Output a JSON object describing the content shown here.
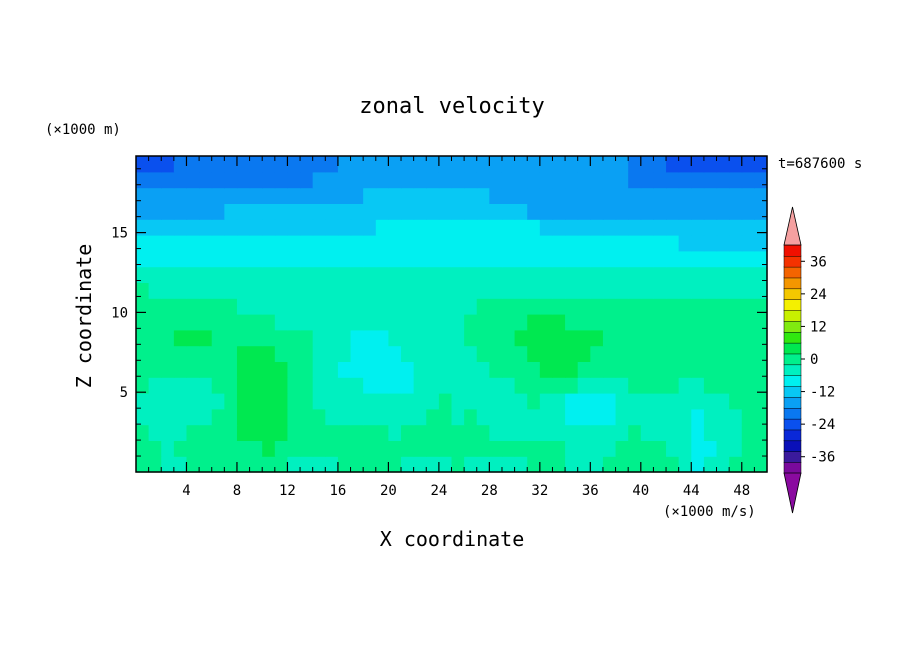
{
  "chart_data": {
    "type": "heatmap",
    "title": "zonal velocity",
    "xlabel": "X coordinate",
    "ylabel": "Z coordinate",
    "x_unit_label": "(×1000 m/s)",
    "y_unit_label": "(×1000 m)",
    "time_label": "t=687600 s",
    "xlim": [
      0,
      50
    ],
    "ylim": [
      0,
      19.8
    ],
    "x_ticks": [
      4,
      8,
      12,
      16,
      20,
      24,
      28,
      32,
      36,
      40,
      44,
      48
    ],
    "x_tick_labels": [
      "4",
      "8",
      "12",
      "16",
      "20",
      "24",
      "28",
      "32",
      "36",
      "40",
      "44",
      "48"
    ],
    "y_ticks": [
      5,
      10,
      15
    ],
    "y_tick_labels": [
      "5",
      "10",
      "15"
    ],
    "grid": false,
    "colorbar": {
      "placement": "right",
      "min": -42,
      "max": 42,
      "step": 4,
      "labels": [
        "36",
        "24",
        "12",
        "0",
        "-12",
        "-24",
        "-36"
      ],
      "label_values": [
        36,
        24,
        12,
        0,
        -12,
        -24,
        -36
      ],
      "colors": [
        "#7a0a9c",
        "#3a1a9c",
        "#0a10b8",
        "#0a28d8",
        "#0a50ee",
        "#0a78f0",
        "#0aa0f4",
        "#08c8f4",
        "#00f0f0",
        "#00f0c0",
        "#00f08c",
        "#00e850",
        "#30e810",
        "#80ea10",
        "#c8f000",
        "#f4f000",
        "#f4c800",
        "#f49600",
        "#f46400",
        "#f43200",
        "#f01000",
        "#f5a0a0"
      ],
      "under_color": "#8a0aa0",
      "over_color": "#f5a0a0"
    },
    "field": {
      "nx": 50,
      "nz": 20,
      "values": [
        [
          -2,
          -2,
          -3,
          -3,
          -2,
          -2,
          -2,
          -1,
          -1,
          -1,
          -2,
          -2,
          -3,
          -3,
          -3,
          -3,
          -2,
          -2,
          -2,
          -2,
          -2,
          -3,
          -3,
          -3,
          -3,
          -2,
          -3,
          -3,
          -3,
          -3,
          -3,
          -2,
          -2,
          -2,
          -3,
          -3,
          -3,
          -2,
          -2,
          -2,
          -1,
          -1,
          -2,
          -3,
          -7,
          -6,
          -3,
          -2,
          -2,
          -2
        ],
        [
          -2,
          -2,
          -3,
          -2,
          -2,
          -2,
          -2,
          -1,
          0,
          1,
          2,
          1,
          0,
          -1,
          -2,
          -1,
          0,
          0,
          -1,
          -1,
          -2,
          -2,
          -1,
          -1,
          -2,
          -2,
          -2,
          -2,
          -2,
          -2,
          -2,
          -2,
          -2,
          -2,
          -3,
          -4,
          -4,
          -3,
          -2,
          -1,
          -1,
          -2,
          -3,
          -5,
          -8,
          -7,
          -4,
          -3,
          -2,
          -2
        ],
        [
          -2,
          -3,
          -3,
          -3,
          -2,
          -2,
          -1,
          1,
          2,
          3,
          3,
          2,
          1,
          -1,
          -2,
          -2,
          -1,
          -1,
          -2,
          -2,
          -3,
          -2,
          -1,
          -1,
          -2,
          -2,
          -2,
          -2,
          -3,
          -3,
          -3,
          -3,
          -3,
          -4,
          -5,
          -5,
          -5,
          -4,
          -3,
          -2,
          -3,
          -4,
          -5,
          -6,
          -8,
          -6,
          -4,
          -3,
          -2,
          -2
        ],
        [
          -3,
          -4,
          -4,
          -4,
          -3,
          -3,
          -2,
          1,
          3,
          4,
          4,
          2,
          1,
          -1,
          -2,
          -3,
          -3,
          -3,
          -4,
          -4,
          -5,
          -4,
          -3,
          -2,
          -2,
          -3,
          -2,
          -3,
          -4,
          -4,
          -4,
          -3,
          -4,
          -6,
          -8,
          -9,
          -9,
          -7,
          -5,
          -3,
          -3,
          -4,
          -5,
          -6,
          -7,
          -5,
          -4,
          -3,
          -2,
          -2
        ],
        [
          -3,
          -5,
          -5,
          -5,
          -5,
          -4,
          -3,
          1,
          3,
          5,
          4,
          2,
          1,
          -1,
          -3,
          -4,
          -4,
          -4,
          -5,
          -5,
          -5,
          -5,
          -4,
          -3,
          -2,
          -3,
          -3,
          -4,
          -4,
          -3,
          -3,
          -2,
          -3,
          -5,
          -8,
          -9,
          -8,
          -7,
          -6,
          -4,
          -3,
          -4,
          -4,
          -4,
          -4,
          -3,
          -3,
          -2,
          -1,
          -1
        ],
        [
          -2,
          -4,
          -5,
          -4,
          -4,
          -3,
          -2,
          1,
          2,
          3,
          3,
          2,
          1,
          -1,
          -3,
          -5,
          -6,
          -6,
          -7,
          -7,
          -7,
          -7,
          -5,
          -4,
          -3,
          -3,
          -3,
          -4,
          -4,
          -4,
          -2,
          -1,
          -1,
          -1,
          -2,
          -4,
          -3,
          -3,
          -3,
          -2,
          -1,
          -2,
          -2,
          -3,
          -3,
          -2,
          -2,
          -1,
          -1,
          -1
        ],
        [
          -1,
          -2,
          -2,
          -2,
          -2,
          -2,
          -1,
          1,
          2,
          3,
          3,
          2,
          1,
          -1,
          -3,
          -5,
          -7,
          -8,
          -9,
          -9,
          -8,
          -7,
          -6,
          -4,
          -3,
          -3,
          -3,
          -3,
          -2,
          -1,
          0,
          1,
          2,
          2,
          2,
          1,
          0,
          0,
          -1,
          -1,
          0,
          0,
          -1,
          -1,
          -1,
          0,
          -1,
          -1,
          -1,
          -1
        ],
        [
          0,
          -1,
          -1,
          -1,
          -1,
          0,
          0,
          1,
          2,
          2,
          2,
          1,
          0,
          -1,
          -3,
          -5,
          -6,
          -7,
          -8,
          -8,
          -8,
          -6,
          -6,
          -5,
          -4,
          -4,
          -3,
          -2,
          -1,
          0,
          1,
          2,
          3,
          3,
          2,
          2,
          1,
          1,
          0,
          0,
          0,
          0,
          -1,
          -1,
          0,
          0,
          0,
          0,
          0,
          0
        ],
        [
          1,
          1,
          1,
          2,
          2,
          2,
          1,
          1,
          1,
          1,
          1,
          0,
          -1,
          -2,
          -4,
          -5,
          -6,
          -7,
          -7,
          -7,
          -6,
          -6,
          -5,
          -5,
          -4,
          -3,
          -2,
          -1,
          0,
          1,
          2,
          2,
          2,
          2,
          2,
          2,
          2,
          1,
          1,
          1,
          1,
          1,
          1,
          1,
          1,
          1,
          1,
          1,
          1,
          1
        ],
        [
          1,
          1,
          1,
          1,
          0,
          0,
          0,
          -1,
          -1,
          -2,
          -2,
          -3,
          -3,
          -4,
          -4,
          -5,
          -5,
          -6,
          -6,
          -6,
          -5,
          -5,
          -4,
          -4,
          -3,
          -3,
          -2,
          -1,
          0,
          0,
          1,
          2,
          2,
          2,
          1,
          1,
          1,
          1,
          0,
          0,
          0,
          0,
          0,
          0,
          0,
          0,
          0,
          1,
          1,
          1
        ],
        [
          0,
          0,
          -1,
          -1,
          -1,
          -2,
          -2,
          -2,
          -3,
          -3,
          -3,
          -3,
          -4,
          -4,
          -4,
          -4,
          -5,
          -5,
          -5,
          -5,
          -5,
          -4,
          -4,
          -4,
          -4,
          -3,
          -3,
          -2,
          -2,
          -1,
          -1,
          -1,
          -1,
          -1,
          -1,
          -1,
          -1,
          -1,
          -1,
          -1,
          -1,
          -1,
          -1,
          -1,
          -1,
          -1,
          -1,
          -1,
          -1,
          -1
        ],
        [
          -2,
          -3,
          -3,
          -3,
          -4,
          -4,
          -4,
          -4,
          -4,
          -4,
          -4,
          -4,
          -4,
          -4,
          -5,
          -5,
          -5,
          -5,
          -5,
          -5,
          -4,
          -4,
          -4,
          -4,
          -4,
          -4,
          -4,
          -4,
          -4,
          -3,
          -3,
          -3,
          -3,
          -3,
          -3,
          -3,
          -3,
          -3,
          -3,
          -3,
          -3,
          -3,
          -3,
          -3,
          -3,
          -3,
          -3,
          -3,
          -3,
          -3
        ],
        [
          -5,
          -5,
          -5,
          -6,
          -6,
          -6,
          -6,
          -6,
          -6,
          -6,
          -5,
          -5,
          -5,
          -5,
          -5,
          -5,
          -6,
          -6,
          -6,
          -6,
          -6,
          -6,
          -6,
          -6,
          -5,
          -5,
          -5,
          -5,
          -6,
          -6,
          -6,
          -6,
          -6,
          -6,
          -6,
          -6,
          -6,
          -6,
          -6,
          -6,
          -6,
          -6,
          -6,
          -6,
          -6,
          -6,
          -6,
          -6,
          -6,
          -6
        ],
        [
          -8,
          -8,
          -8,
          -8,
          -8,
          -8,
          -7,
          -7,
          -7,
          -7,
          -7,
          -7,
          -7,
          -7,
          -7,
          -7,
          -7,
          -7,
          -7,
          -7,
          -7,
          -7,
          -7,
          -8,
          -8,
          -8,
          -8,
          -8,
          -8,
          -8,
          -8,
          -8,
          -8,
          -8,
          -8,
          -8,
          -8,
          -8,
          -8,
          -8,
          -8,
          -8,
          -8,
          -9,
          -9,
          -9,
          -9,
          -9,
          -9,
          -9
        ],
        [
          -10,
          -10,
          -10,
          -10,
          -10,
          -9,
          -9,
          -9,
          -9,
          -9,
          -9,
          -9,
          -9,
          -9,
          -9,
          -9,
          -9,
          -9,
          -9,
          -9,
          -9,
          -9,
          -9,
          -9,
          -9,
          -9,
          -9,
          -9,
          -9,
          -9,
          -9,
          -9,
          -9,
          -9,
          -9,
          -10,
          -10,
          -10,
          -10,
          -10,
          -10,
          -10,
          -10,
          -11,
          -11,
          -11,
          -11,
          -11,
          -11,
          -11
        ],
        [
          -12,
          -12,
          -12,
          -12,
          -12,
          -11,
          -11,
          -11,
          -11,
          -11,
          -11,
          -11,
          -11,
          -11,
          -11,
          -11,
          -11,
          -11,
          -11,
          -10,
          -10,
          -10,
          -10,
          -10,
          -10,
          -10,
          -10,
          -10,
          -10,
          -10,
          -10,
          -10,
          -11,
          -11,
          -12,
          -12,
          -13,
          -13,
          -13,
          -13,
          -13,
          -13,
          -13,
          -13,
          -13,
          -13,
          -13,
          -13,
          -13,
          -13
        ],
        [
          -15,
          -15,
          -15,
          -15,
          -15,
          -15,
          -15,
          -14,
          -14,
          -14,
          -14,
          -14,
          -14,
          -14,
          -13,
          -13,
          -13,
          -13,
          -13,
          -12,
          -12,
          -12,
          -12,
          -12,
          -12,
          -12,
          -13,
          -13,
          -13,
          -14,
          -14,
          -15,
          -15,
          -15,
          -16,
          -16,
          -17,
          -17,
          -17,
          -17,
          -17,
          -17,
          -17,
          -17,
          -17,
          -17,
          -17,
          -17,
          -17,
          -17
        ],
        [
          -18,
          -18,
          -18,
          -18,
          -18,
          -18,
          -18,
          -17,
          -17,
          -17,
          -17,
          -17,
          -16,
          -16,
          -16,
          -15,
          -15,
          -15,
          -14,
          -14,
          -14,
          -14,
          -14,
          -14,
          -14,
          -14,
          -14,
          -14,
          -15,
          -15,
          -16,
          -16,
          -16,
          -17,
          -17,
          -17,
          -18,
          -18,
          -18,
          -18,
          -18,
          -18,
          -18,
          -18,
          -18,
          -18,
          -18,
          -18,
          -18,
          -18
        ],
        [
          -21,
          -21,
          -21,
          -20,
          -20,
          -20,
          -20,
          -20,
          -20,
          -20,
          -19,
          -19,
          -19,
          -19,
          -18,
          -18,
          -17,
          -17,
          -16,
          -15,
          -15,
          -15,
          -15,
          -15,
          -15,
          -15,
          -15,
          -15,
          -15,
          -15,
          -15,
          -15,
          -16,
          -16,
          -16,
          -16,
          -16,
          -17,
          -18,
          -19,
          -20,
          -20,
          -21,
          -21,
          -21,
          -21,
          -21,
          -21,
          -21,
          -21
        ],
        [
          -23,
          -23,
          -23,
          -22,
          -22,
          -22,
          -22,
          -22,
          -21,
          -21,
          -21,
          -21,
          -21,
          -20,
          -20,
          -19,
          -18,
          -17,
          -16,
          -16,
          -15,
          -15,
          -15,
          -15,
          -15,
          -15,
          -15,
          -15,
          -15,
          -15,
          -15,
          -15,
          -16,
          -16,
          -16,
          -16,
          -16,
          -17,
          -18,
          -19,
          -21,
          -22,
          -23,
          -23,
          -23,
          -23,
          -23,
          -23,
          -23,
          -23
        ]
      ]
    }
  }
}
